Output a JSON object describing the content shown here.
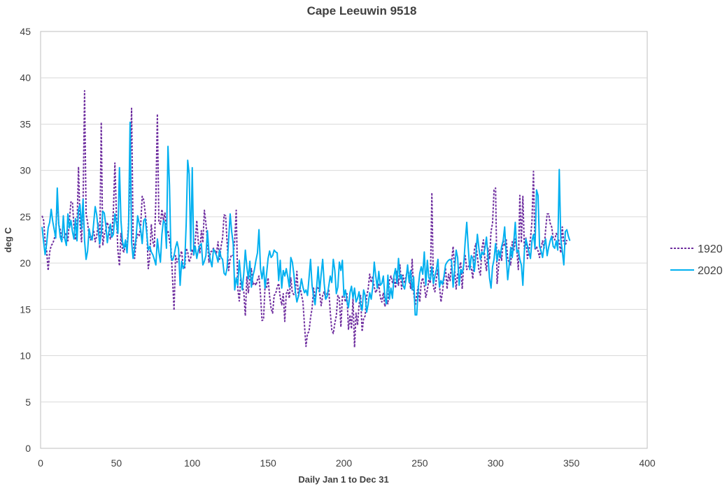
{
  "chart_data": {
    "type": "line",
    "title": "Cape Leeuwin 9518",
    "xlabel": "Daily Jan 1 to Dec 31",
    "ylabel": "deg C",
    "xlim": [
      0,
      400
    ],
    "ylim": [
      0,
      45
    ],
    "x_ticks": [
      0,
      50,
      100,
      150,
      200,
      250,
      300,
      350,
      400
    ],
    "y_ticks": [
      0,
      5,
      10,
      15,
      20,
      25,
      30,
      35,
      40,
      45
    ],
    "grid": "horizontal",
    "legend_position": "right",
    "x_step": 1,
    "series": [
      {
        "name": "1920",
        "color": "#7030A0",
        "dash": "dashed",
        "values": [
          25.1,
          24.6,
          22.4,
          21.3,
          19.2,
          21.2,
          21.9,
          22.1,
          22.6,
          23.3,
          26.9,
          24.1,
          23.6,
          22.5,
          22.7,
          22.9,
          23.3,
          22.4,
          24.6,
          26.6,
          26.6,
          23.9,
          22.5,
          23.8,
          30.4,
          24.3,
          22.3,
          26.3,
          38.6,
          25.3,
          24.4,
          22.8,
          22.5,
          22.9,
          23.5,
          22.3,
          22.9,
          24.3,
          21.6,
          35.2,
          21.9,
          23.1,
          23.6,
          24.4,
          23.8,
          22.6,
          23.1,
          25.6,
          30.8,
          25.1,
          21.3,
          19.7,
          23.2,
          21.4,
          21.2,
          22.1,
          21.8,
          24.2,
          29.4,
          36.7,
          22.8,
          20.5,
          22.4,
          23.1,
          22.9,
          24.1,
          27.2,
          26.8,
          25.4,
          23.8,
          19.4,
          20.6,
          24.2,
          22.3,
          21.7,
          26.8,
          36.1,
          24.4,
          24.2,
          25.8,
          24.6,
          25.4,
          23.2,
          23.5,
          22.4,
          21.6,
          18.4,
          14.9,
          20.8,
          20.1,
          20.5,
          20.8,
          21.3,
          19.6,
          19.4,
          21.6,
          21.2,
          20.1,
          20.6,
          21.5,
          20.8,
          22.4,
          24.6,
          22.2,
          21.1,
          23.5,
          22.2,
          25.7,
          24.3,
          22.4,
          20.1,
          21.2,
          21.3,
          21.6,
          21.3,
          21.1,
          22.3,
          20.4,
          21.8,
          22.7,
          25.2,
          25.1,
          22.2,
          19.2,
          20.5,
          20.9,
          20.8,
          22.5,
          25.7,
          17.3,
          15.9,
          18.4,
          17.5,
          16.9,
          14.3,
          18.5,
          16.8,
          18.5,
          19.4,
          17.7,
          17.9,
          17.6,
          18.2,
          18.6,
          16.6,
          13.8,
          13.9,
          17.5,
          17.3,
          18.4,
          16.4,
          15.1,
          14.6,
          16.5,
          16.7,
          17.4,
          17.8,
          16.3,
          15.5,
          16.7,
          13.7,
          16.7,
          17.1,
          16.2,
          18.4,
          16.8,
          16.6,
          16.9,
          19.1,
          16.3,
          17.5,
          16.6,
          15.8,
          13.3,
          11.0,
          12.4,
          12.6,
          14.1,
          15.1,
          17.3,
          16.1,
          17.4,
          17.3,
          16.8,
          15.4,
          16.5,
          16.9,
          16.1,
          16.8,
          17.2,
          14.7,
          12.8,
          12.4,
          13.5,
          14.3,
          16.5,
          16.2,
          13.1,
          16.4,
          16.5,
          15.8,
          16.7,
          12.8,
          14.4,
          12.9,
          16.2,
          10.9,
          14.6,
          13.3,
          15.5,
          16.5,
          12.6,
          14.0,
          14.3,
          16.4,
          17.2,
          18.8,
          17.9,
          18.6,
          17.4,
          16.8,
          17.2,
          17.7,
          16.3,
          15.8,
          16.8,
          15.3,
          15.9,
          15.6,
          18.1,
          18.6,
          17.9,
          18.4,
          17.3,
          19.1,
          17.6,
          19.8,
          17.2,
          18.7,
          17.8,
          18.6,
          19.4,
          18.7,
          17.2,
          20.4,
          16.8,
          15.4,
          16.6,
          17.5,
          15.8,
          17.9,
          18.4,
          17.6,
          16.3,
          17.1,
          18.2,
          17.8,
          27.6,
          17.4,
          16.9,
          18.4,
          19.3,
          17.6,
          15.8,
          16.9,
          18.3,
          19.5,
          17.2,
          18.8,
          18.1,
          20.1,
          21.8,
          19.4,
          17.2,
          18.9,
          19.4,
          20.1,
          17.2,
          19.9,
          20.8,
          19.3,
          19.6,
          19.8,
          19.5,
          18.3,
          21.4,
          22.1,
          20.7,
          19.3,
          18.7,
          21.6,
          22.5,
          20.3,
          19.2,
          21.6,
          20.4,
          23.4,
          24.3,
          27.9,
          28.1,
          17.8,
          19.7,
          21.2,
          20.3,
          22.5,
          21.8,
          22.6,
          20.4,
          20.1,
          19.8,
          22.3,
          21.3,
          22.6,
          21.4,
          19.3,
          27.3,
          22.2,
          27.2,
          21.5,
          22.7,
          20.5,
          21.3,
          22.6,
          24.5,
          29.9,
          21.4,
          21.8,
          21.3,
          20.6,
          21.7,
          22.4,
          21.6,
          23.6,
          25.3,
          25.3,
          24.3,
          23.9,
          22.7,
          22.5,
          23.2,
          22.9,
          22.2,
          21.1,
          23.9,
          22.2,
          21.9,
          22.5
        ]
      },
      {
        "name": "2020",
        "color": "#00B0F0",
        "dash": "solid",
        "values": [
          23.9,
          22.3,
          20.9,
          22.1,
          23.8,
          24.4,
          25.8,
          24.5,
          23.6,
          22.7,
          28.1,
          24.2,
          22.8,
          22.3,
          25.1,
          22.6,
          21.9,
          25.3,
          23.8,
          24.6,
          23.4,
          22.6,
          24.8,
          22.4,
          25.8,
          26.3,
          23.7,
          26.9,
          22.4,
          20.4,
          21.3,
          23.7,
          22.8,
          22.5,
          24.3,
          26.1,
          25.2,
          23.6,
          22.1,
          23.2,
          25.6,
          25.4,
          24.1,
          22.2,
          23.4,
          24.2,
          22.8,
          23.1,
          25.3,
          24.3,
          23.2,
          30.3,
          24.6,
          22.3,
          21.6,
          22.5,
          21.1,
          23.8,
          35.2,
          22.3,
          20.5,
          21.6,
          22.8,
          25.1,
          24.3,
          23.6,
          22.1,
          24.6,
          24.8,
          23.2,
          21.4,
          21.8,
          21.2,
          20.9,
          20.4,
          19.8,
          22.6,
          21.2,
          20.1,
          23.1,
          24.6,
          24.3,
          21.6,
          32.6,
          28.4,
          20.6,
          20.3,
          20.8,
          21.7,
          22.3,
          21.5,
          17.6,
          20.2,
          19.4,
          19.8,
          24.2,
          31.1,
          29.6,
          21.3,
          30.3,
          20.9,
          21.8,
          20.5,
          21.4,
          21.9,
          22.1,
          19.8,
          20.2,
          20.8,
          23.5,
          21.2,
          20.3,
          19.6,
          21.5,
          21.2,
          20.8,
          20.1,
          21.4,
          20.6,
          20.4,
          18.9,
          18.7,
          19.5,
          22.6,
          25.3,
          23.4,
          22.1,
          17.1,
          18.4,
          17.6,
          20.3,
          18.5,
          17.1,
          18.9,
          21.4,
          19.6,
          18.3,
          20.2,
          17.4,
          18.6,
          19.3,
          20.3,
          21.1,
          23.6,
          19.4,
          18.3,
          19.6,
          17.3,
          18.8,
          20.5,
          21.3,
          20.6,
          20.8,
          21.4,
          21.2,
          21.1,
          18.1,
          20.3,
          17.3,
          19.2,
          18.6,
          19.4,
          18.5,
          17.4,
          20.6,
          20.1,
          18.8,
          16.9,
          15.8,
          16.4,
          17.2,
          18.3,
          17.4,
          16.8,
          17.1,
          16.5,
          18.4,
          20.4,
          17.6,
          16.4,
          15.5,
          17.3,
          19.6,
          16.9,
          18.8,
          20.4,
          17.8,
          16.1,
          16.4,
          17.5,
          18.6,
          17.9,
          20.4,
          19.2,
          16.7,
          17.4,
          20.1,
          19.2,
          20.3,
          16.4,
          17.1,
          15.9,
          15.2,
          16.8,
          17.5,
          16.2,
          17.3,
          15.8,
          16.2,
          16.9,
          15.4,
          14.9,
          17.1,
          16.5,
          14.7,
          15.6,
          16.8,
          16.1,
          17.4,
          20.1,
          18.6,
          17.3,
          19.1,
          17.6,
          17.8,
          18.6,
          16.4,
          15.6,
          18.7,
          16.1,
          17.3,
          16.2,
          18.6,
          19.4,
          17.8,
          20.5,
          18.3,
          18.7,
          17.6,
          17.2,
          18.3,
          19.8,
          17.9,
          19.2,
          17.1,
          18.5,
          14.4,
          14.4,
          17.3,
          18.9,
          19.6,
          18.8,
          21.2,
          17.6,
          20.3,
          18.4,
          18.2,
          19.6,
          17.8,
          18.6,
          19.3,
          20.4,
          17.4,
          18.1,
          17.7,
          18.6,
          19.8,
          20.1,
          20.3,
          20.4,
          20.2,
          17.4,
          19.3,
          21.4,
          20.6,
          17.6,
          19.3,
          18.9,
          19.8,
          22.4,
          24.4,
          21.6,
          19.3,
          20.8,
          20.5,
          19.1,
          20.9,
          23.1,
          21.6,
          20.4,
          21.2,
          20.9,
          21.6,
          22.8,
          20.7,
          18.4,
          17.3,
          19.6,
          20.4,
          22.1,
          20.2,
          21.4,
          20.6,
          21.8,
          22.4,
          23.9,
          20.8,
          18.2,
          19.8,
          21.7,
          20.6,
          22.3,
          24.4,
          21.2,
          21.4,
          20.4,
          19.8,
          17.6,
          21.3,
          22.6,
          21.9,
          21.2,
          20.5,
          22.4,
          23.1,
          21.6,
          27.9,
          27.3,
          21.8,
          21.3,
          20.6,
          21.9,
          22.6,
          20.8,
          21.7,
          22.4,
          22.9,
          21.8,
          21.6,
          22.4,
          21.4,
          30.1,
          22.6,
          21.3,
          19.8,
          23.4,
          23.6,
          22.9,
          22.4
        ]
      }
    ]
  }
}
